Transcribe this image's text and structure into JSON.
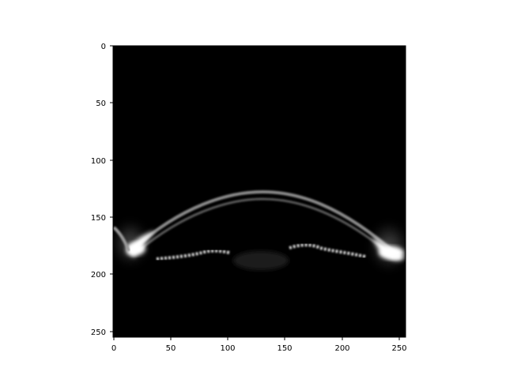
{
  "image_plot": {
    "colormap": "gray",
    "background_color": "#000000",
    "x_ticks": [
      "0",
      "50",
      "100",
      "150",
      "200",
      "250"
    ],
    "y_ticks": [
      "0",
      "50",
      "100",
      "150",
      "200",
      "250"
    ],
    "xlim": [
      0,
      256
    ],
    "ylim": [
      256,
      0
    ],
    "content": "grayscale OCT scan of anterior eye segment (cornea arc and iris)"
  }
}
